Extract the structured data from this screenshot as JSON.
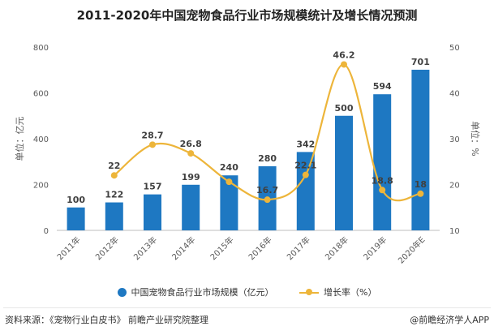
{
  "chart_data": {
    "type": "bar+line",
    "title": "2011-2020年中国宠物食品行业市场规模统计及增长情况预测",
    "categories": [
      "2011年",
      "2012年",
      "2013年",
      "2014年",
      "2015年",
      "2016年",
      "2017年",
      "2018年",
      "2019年",
      "2020年E"
    ],
    "series": [
      {
        "name": "中国宠物食品行业市场规模（亿元）",
        "type": "bar",
        "axis": "left",
        "values": [
          100,
          122,
          157,
          199,
          240,
          280,
          342,
          500,
          594,
          701
        ],
        "labels": [
          "100",
          "122",
          "157",
          "199",
          "240",
          "280",
          "342",
          "500",
          "594",
          "701"
        ],
        "color": "#1E78C2"
      },
      {
        "name": "增长率（%）",
        "type": "line",
        "axis": "right",
        "values": [
          null,
          22,
          28.7,
          26.8,
          20.6,
          16.7,
          22.1,
          46.2,
          18.8,
          18
        ],
        "labels": [
          "",
          "22",
          "28.7",
          "26.8",
          "",
          "16.7",
          "22.1",
          "46.2",
          "18.8",
          "18"
        ],
        "color": "#EDB53A"
      }
    ],
    "y_left": {
      "label": "单位：亿元",
      "range": [
        0,
        800
      ],
      "ticks": [
        "0",
        "200",
        "400",
        "600",
        "800"
      ]
    },
    "y_right": {
      "label": "单位：%",
      "range": [
        10,
        50
      ],
      "ticks": [
        "10",
        "20",
        "30",
        "40",
        "50"
      ]
    },
    "legend_position": "bottom",
    "grid": false
  },
  "legend": {
    "bar_label": "中国宠物食品行业市场规模（亿元）",
    "line_label": "增长率（%）"
  },
  "footer": {
    "source": "资料来源：《宠物行业白皮书》 前瞻产业研究院整理",
    "brand": "@前瞻经济学人APP"
  }
}
